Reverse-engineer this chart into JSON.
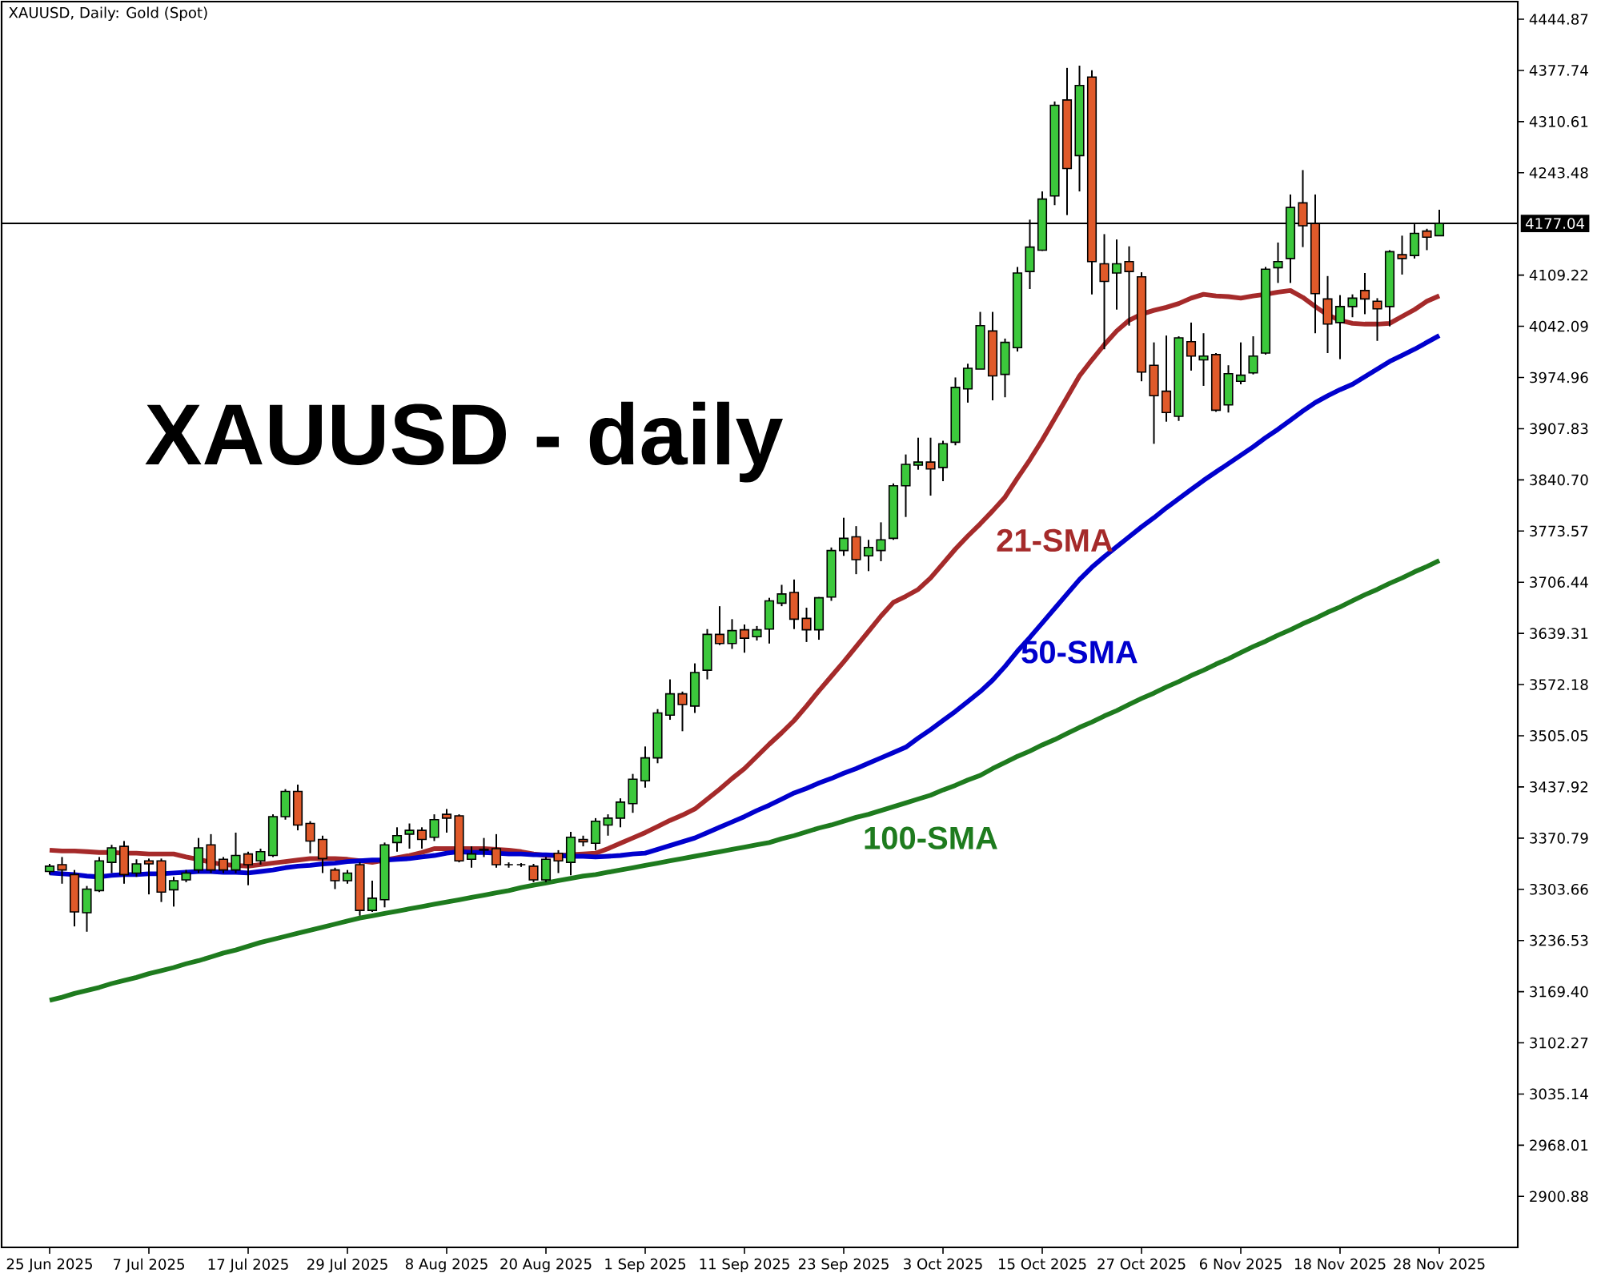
{
  "chart_data": {
    "type": "candlestick",
    "title": "XAUUSD, Daily:  Gold (Spot)",
    "annotations": [
      "XAUUSD - daily"
    ],
    "categories": [
      "25 Jun 2025",
      null,
      null,
      null,
      null,
      null,
      null,
      null,
      "7 Jul 2025",
      null,
      null,
      null,
      null,
      null,
      null,
      null,
      "17 Jul 2025",
      null,
      null,
      null,
      null,
      null,
      null,
      null,
      "29 Jul 2025",
      null,
      null,
      null,
      null,
      null,
      null,
      null,
      "8 Aug 2025",
      null,
      null,
      null,
      null,
      null,
      null,
      null,
      "20 Aug 2025",
      null,
      null,
      null,
      null,
      null,
      null,
      null,
      "1 Sep 2025",
      null,
      null,
      null,
      null,
      null,
      null,
      null,
      "11 Sep 2025",
      null,
      null,
      null,
      null,
      null,
      null,
      null,
      "23 Sep 2025",
      null,
      null,
      null,
      null,
      null,
      null,
      null,
      "3 Oct 2025",
      null,
      null,
      null,
      null,
      null,
      null,
      null,
      "15 Oct 2025",
      null,
      null,
      null,
      null,
      null,
      null,
      null,
      "27 Oct 2025",
      null,
      null,
      null,
      null,
      null,
      null,
      null,
      "6 Nov 2025",
      null,
      null,
      null,
      null,
      null,
      null,
      null,
      "18 Nov 2025",
      null,
      null,
      null,
      null,
      null,
      null,
      null,
      "28 Nov 2025"
    ],
    "ohlc": [
      [
        3327,
        3337,
        3323,
        3334
      ],
      [
        3336,
        3346,
        3311,
        3329
      ],
      [
        3323,
        3329,
        3255,
        3274
      ],
      [
        3273,
        3308,
        3248,
        3304
      ],
      [
        3302,
        3346,
        3300,
        3341
      ],
      [
        3339,
        3362,
        3325,
        3358
      ],
      [
        3360,
        3367,
        3311,
        3323
      ],
      [
        3325,
        3343,
        3320,
        3337
      ],
      [
        3341,
        3344,
        3297,
        3337
      ],
      [
        3341,
        3344,
        3287,
        3300
      ],
      [
        3303,
        3320,
        3281,
        3315
      ],
      [
        3316,
        3329,
        3313,
        3325
      ],
      [
        3329,
        3371,
        3325,
        3358
      ],
      [
        3362,
        3376,
        3325,
        3329
      ],
      [
        3343,
        3346,
        3325,
        3329
      ],
      [
        3329,
        3378,
        3325,
        3348
      ],
      [
        3350,
        3353,
        3309,
        3336
      ],
      [
        3341,
        3357,
        3336,
        3353
      ],
      [
        3348,
        3402,
        3346,
        3399
      ],
      [
        3399,
        3435,
        3395,
        3432
      ],
      [
        3432,
        3441,
        3381,
        3388
      ],
      [
        3390,
        3393,
        3351,
        3367
      ],
      [
        3369,
        3374,
        3325,
        3344
      ],
      [
        3329,
        3332,
        3304,
        3315
      ],
      [
        3315,
        3329,
        3311,
        3325
      ],
      [
        3336,
        3339,
        3269,
        3276
      ],
      [
        3276,
        3315,
        3274,
        3292
      ],
      [
        3290,
        3365,
        3280,
        3362
      ],
      [
        3365,
        3385,
        3353,
        3374
      ],
      [
        3376,
        3390,
        3357,
        3381
      ],
      [
        3381,
        3385,
        3357,
        3369
      ],
      [
        3372,
        3402,
        3367,
        3395
      ],
      [
        3402,
        3409,
        3378,
        3397
      ],
      [
        3400,
        3402,
        3339,
        3341
      ],
      [
        3343,
        3360,
        3332,
        3350
      ],
      [
        3355,
        3371,
        3346,
        3356
      ],
      [
        3357,
        3376,
        3332,
        3336
      ],
      [
        3336,
        3339,
        3332,
        3336
      ],
      [
        3336,
        3338,
        3333,
        3336
      ],
      [
        3334,
        3337,
        3313,
        3316
      ],
      [
        3316,
        3346,
        3313,
        3343
      ],
      [
        3351,
        3355,
        3325,
        3341
      ],
      [
        3339,
        3379,
        3322,
        3372
      ],
      [
        3369,
        3374,
        3360,
        3366
      ],
      [
        3364,
        3397,
        3355,
        3393
      ],
      [
        3388,
        3402,
        3374,
        3397
      ],
      [
        3397,
        3423,
        3385,
        3418
      ],
      [
        3416,
        3455,
        3404,
        3448
      ],
      [
        3446,
        3491,
        3437,
        3476
      ],
      [
        3476,
        3540,
        3469,
        3535
      ],
      [
        3532,
        3579,
        3526,
        3560
      ],
      [
        3560,
        3563,
        3511,
        3546
      ],
      [
        3544,
        3600,
        3535,
        3588
      ],
      [
        3591,
        3645,
        3579,
        3638
      ],
      [
        3638,
        3675,
        3624,
        3626
      ],
      [
        3626,
        3658,
        3619,
        3643
      ],
      [
        3644,
        3651,
        3614,
        3633
      ],
      [
        3635,
        3649,
        3630,
        3644
      ],
      [
        3645,
        3686,
        3626,
        3682
      ],
      [
        3679,
        3703,
        3675,
        3691
      ],
      [
        3693,
        3710,
        3645,
        3658
      ],
      [
        3659,
        3673,
        3628,
        3644
      ],
      [
        3644,
        3687,
        3631,
        3686
      ],
      [
        3687,
        3752,
        3682,
        3748
      ],
      [
        3748,
        3791,
        3741,
        3764
      ],
      [
        3766,
        3780,
        3717,
        3736
      ],
      [
        3741,
        3762,
        3721,
        3752
      ],
      [
        3748,
        3785,
        3734,
        3762
      ],
      [
        3764,
        3836,
        3762,
        3833
      ],
      [
        3833,
        3874,
        3792,
        3861
      ],
      [
        3860,
        3896,
        3854,
        3864
      ],
      [
        3864,
        3896,
        3820,
        3855
      ],
      [
        3857,
        3892,
        3839,
        3888
      ],
      [
        3890,
        3975,
        3886,
        3962
      ],
      [
        3960,
        3993,
        3942,
        3987
      ],
      [
        3986,
        4061,
        3986,
        4043
      ],
      [
        4036,
        4061,
        3945,
        3977
      ],
      [
        3979,
        4026,
        3949,
        4021
      ],
      [
        4014,
        4120,
        4009,
        4112
      ],
      [
        4114,
        4182,
        4091,
        4146
      ],
      [
        4142,
        4219,
        4141,
        4209
      ],
      [
        4213,
        4337,
        4201,
        4332
      ],
      [
        4339,
        4381,
        4188,
        4249
      ],
      [
        4266,
        4384,
        4219,
        4358
      ],
      [
        4369,
        4378,
        4084,
        4127
      ],
      [
        4124,
        4163,
        4012,
        4101
      ],
      [
        4112,
        4156,
        4064,
        4124
      ],
      [
        4127,
        4147,
        4043,
        4114
      ],
      [
        4107,
        4113,
        3970,
        3982
      ],
      [
        3991,
        4021,
        3888,
        3951
      ],
      [
        3957,
        4030,
        3917,
        3929
      ],
      [
        3924,
        4029,
        3918,
        4027
      ],
      [
        4022,
        4047,
        3984,
        4003
      ],
      [
        3998,
        4033,
        3964,
        4003
      ],
      [
        4005,
        4007,
        3930,
        3932
      ],
      [
        3939,
        3991,
        3929,
        3980
      ],
      [
        3970,
        4021,
        3966,
        3978
      ],
      [
        3981,
        4029,
        3979,
        4003
      ],
      [
        4007,
        4120,
        4005,
        4117
      ],
      [
        4119,
        4152,
        4099,
        4127
      ],
      [
        4131,
        4215,
        4099,
        4198
      ],
      [
        4204,
        4247,
        4146,
        4174
      ],
      [
        4177,
        4215,
        4033,
        4085
      ],
      [
        4078,
        4108,
        4007,
        4045
      ],
      [
        4047,
        4083,
        3999,
        4068
      ],
      [
        4068,
        4084,
        4054,
        4079
      ],
      [
        4089,
        4112,
        4058,
        4078
      ],
      [
        4075,
        4079,
        4023,
        4065
      ],
      [
        4068,
        4142,
        4042,
        4140
      ],
      [
        4136,
        4161,
        4110,
        4131
      ],
      [
        4135,
        4176,
        4131,
        4164
      ],
      [
        4167,
        4170,
        4142,
        4159
      ],
      [
        4161,
        4195,
        4161,
        4177.04
      ]
    ],
    "colors": [
      "#3cc83c",
      "#e05a2a",
      "#e05a2a",
      "#3cc83c",
      "#3cc83c",
      "#3cc83c",
      "#e05a2a",
      "#3cc83c",
      "#e05a2a",
      "#e05a2a",
      "#3cc83c",
      "#3cc83c",
      "#3cc83c",
      "#e05a2a",
      "#e05a2a",
      "#3cc83c",
      "#e05a2a",
      "#3cc83c",
      "#3cc83c",
      "#3cc83c",
      "#e05a2a",
      "#e05a2a",
      "#e05a2a",
      "#e05a2a",
      "#3cc83c",
      "#e05a2a",
      "#3cc83c",
      "#3cc83c",
      "#3cc83c",
      "#3cc83c",
      "#e05a2a",
      "#3cc83c",
      "#e05a2a",
      "#e05a2a",
      "#3cc83c",
      "#3cc83c",
      "#e05a2a",
      "#000000",
      "#000000",
      "#e05a2a",
      "#3cc83c",
      "#e05a2a",
      "#3cc83c",
      "#e05a2a",
      "#3cc83c",
      "#3cc83c",
      "#3cc83c",
      "#3cc83c",
      "#3cc83c",
      "#3cc83c",
      "#3cc83c",
      "#e05a2a",
      "#3cc83c",
      "#3cc83c",
      "#e05a2a",
      "#3cc83c",
      "#e05a2a",
      "#3cc83c",
      "#3cc83c",
      "#3cc83c",
      "#e05a2a",
      "#e05a2a",
      "#3cc83c",
      "#3cc83c",
      "#3cc83c",
      "#e05a2a",
      "#3cc83c",
      "#3cc83c",
      "#3cc83c",
      "#3cc83c",
      "#3cc83c",
      "#e05a2a",
      "#3cc83c",
      "#3cc83c",
      "#3cc83c",
      "#3cc83c",
      "#e05a2a",
      "#3cc83c",
      "#3cc83c",
      "#3cc83c",
      "#3cc83c",
      "#3cc83c",
      "#e05a2a",
      "#3cc83c",
      "#e05a2a",
      "#e05a2a",
      "#3cc83c",
      "#e05a2a",
      "#e05a2a",
      "#e05a2a",
      "#e05a2a",
      "#3cc83c",
      "#e05a2a",
      "#3cc83c",
      "#e05a2a",
      "#3cc83c",
      "#3cc83c",
      "#3cc83c",
      "#3cc83c",
      "#3cc83c",
      "#3cc83c",
      "#e05a2a",
      "#e05a2a",
      "#e05a2a",
      "#3cc83c",
      "#3cc83c",
      "#e05a2a",
      "#e05a2a",
      "#3cc83c",
      "#e05a2a",
      "#3cc83c",
      "#e05a2a",
      "#3cc83c"
    ],
    "series": [
      {
        "name": "21-SMA",
        "type": "line",
        "color": "#a52a2a",
        "values": [
          3355,
          3354,
          3354,
          3353,
          3352,
          3352,
          3351,
          3351,
          3350,
          3350,
          3350,
          3346,
          3343,
          3339,
          3336,
          3335,
          3334,
          3336,
          3338,
          3340,
          3342,
          3344,
          3344,
          3344,
          3343,
          3341,
          3339,
          3342,
          3345,
          3348,
          3352,
          3357,
          3357,
          3357,
          3357,
          3357,
          3356,
          3355,
          3353,
          3350,
          3348,
          3348,
          3349,
          3350,
          3351,
          3357,
          3364,
          3371,
          3378,
          3386,
          3394,
          3401,
          3409,
          3422,
          3435,
          3449,
          3462,
          3478,
          3494,
          3509,
          3525,
          3544,
          3564,
          3583,
          3602,
          3622,
          3642,
          3662,
          3680,
          3688,
          3697,
          3712,
          3731,
          3750,
          3767,
          3783,
          3800,
          3818,
          3843,
          3867,
          3893,
          3921,
          3949,
          3977,
          3998,
          4018,
          4036,
          4050,
          4058,
          4063,
          4067,
          4072,
          4079,
          4084,
          4082,
          4081,
          4079,
          4082,
          4084,
          4087,
          4089,
          4080,
          4068,
          4057,
          4050,
          4046,
          4045,
          4045,
          4046,
          4055,
          4064,
          4075,
          4082
        ]
      },
      {
        "name": "50-SMA",
        "type": "line",
        "color": "#0000cd",
        "values": [
          3325,
          3324,
          3323,
          3321,
          3320,
          3322,
          3323,
          3323,
          3324,
          3324,
          3325,
          3326,
          3327,
          3327,
          3326,
          3326,
          3325,
          3327,
          3329,
          3332,
          3334,
          3335,
          3337,
          3338,
          3340,
          3341,
          3342,
          3342,
          3343,
          3344,
          3346,
          3348,
          3351,
          3353,
          3352,
          3352,
          3351,
          3350,
          3350,
          3349,
          3349,
          3348,
          3347,
          3347,
          3346,
          3347,
          3348,
          3350,
          3351,
          3356,
          3361,
          3366,
          3371,
          3378,
          3385,
          3392,
          3399,
          3407,
          3414,
          3422,
          3430,
          3436,
          3443,
          3449,
          3456,
          3462,
          3469,
          3476,
          3483,
          3490,
          3502,
          3513,
          3525,
          3537,
          3550,
          3563,
          3578,
          3596,
          3616,
          3634,
          3653,
          3672,
          3691,
          3710,
          3726,
          3740,
          3753,
          3766,
          3779,
          3791,
          3804,
          3816,
          3828,
          3840,
          3851,
          3862,
          3873,
          3884,
          3896,
          3907,
          3919,
          3931,
          3942,
          3951,
          3959,
          3966,
          3976,
          3986,
          3996,
          4004,
          4012,
          4021,
          4030
        ]
      },
      {
        "name": "100-SMA",
        "type": "line",
        "color": "#1e7b1e",
        "values": [
          3158,
          3162,
          3167,
          3171,
          3175,
          3180,
          3184,
          3188,
          3193,
          3197,
          3201,
          3206,
          3210,
          3215,
          3220,
          3224,
          3229,
          3234,
          3238,
          3242,
          3246,
          3250,
          3254,
          3258,
          3262,
          3266,
          3269,
          3272,
          3275,
          3278,
          3281,
          3284,
          3287,
          3290,
          3293,
          3296,
          3299,
          3302,
          3306,
          3309,
          3312,
          3315,
          3318,
          3321,
          3323,
          3326,
          3329,
          3332,
          3335,
          3338,
          3341,
          3344,
          3347,
          3350,
          3353,
          3356,
          3359,
          3362,
          3365,
          3370,
          3374,
          3379,
          3384,
          3388,
          3393,
          3398,
          3402,
          3407,
          3412,
          3417,
          3422,
          3427,
          3434,
          3440,
          3447,
          3453,
          3462,
          3470,
          3478,
          3485,
          3493,
          3500,
          3508,
          3516,
          3523,
          3531,
          3538,
          3546,
          3554,
          3561,
          3569,
          3576,
          3584,
          3591,
          3599,
          3606,
          3614,
          3622,
          3629,
          3637,
          3644,
          3652,
          3659,
          3667,
          3674,
          3682,
          3690,
          3697,
          3705,
          3712,
          3720,
          3727,
          3735
        ]
      }
    ],
    "ylim": [
      2834,
      4468
    ],
    "yticks": [
      2900.88,
      2968.01,
      3035.14,
      3102.27,
      {
        "value": 3169.4,
        "label": "3169.40"
      },
      3236.53,
      3303.66,
      3370.79,
      3437.92,
      3505.05,
      3572.18,
      3639.31,
      3706.44,
      3773.57,
      {
        "value": 3840.7,
        "label": "3840.70"
      },
      3907.83,
      3974.96,
      4042.09,
      4109.22,
      4243.48,
      4310.61,
      4377.74,
      4444.87
    ],
    "ref_lines": [
      {
        "axis": "y",
        "value": 4177.04,
        "label": "4177.04",
        "color": "#000000"
      }
    ]
  }
}
